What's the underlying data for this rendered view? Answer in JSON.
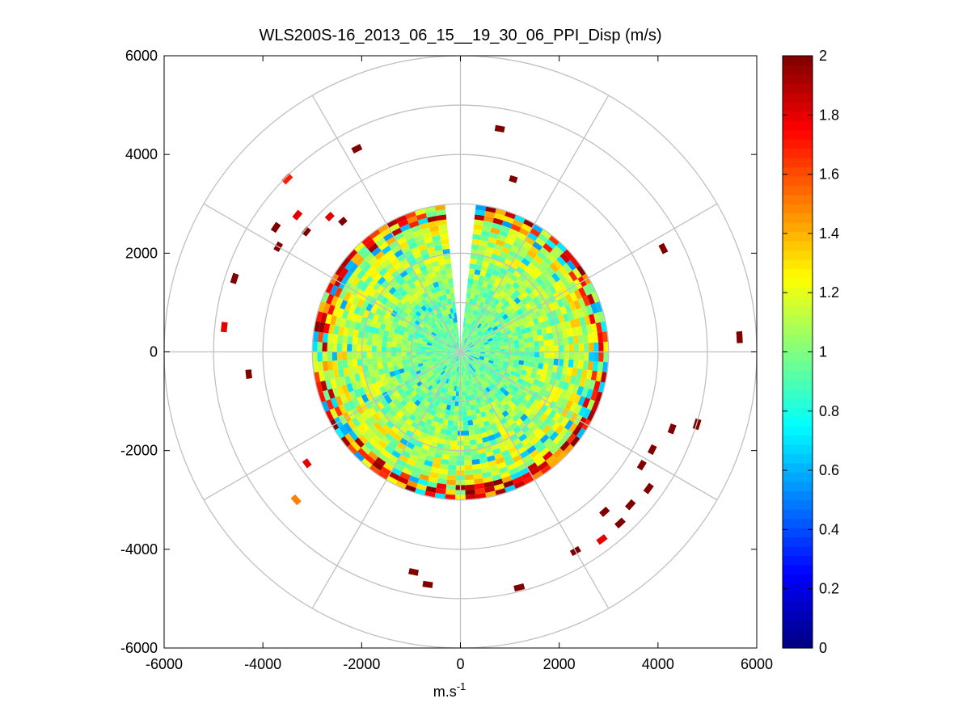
{
  "chart_data": {
    "type": "heatmap",
    "subtype": "polar-ppi",
    "title": "WLS200S-16_2013_06_15__19_30_06_PPI_Disp (m/s)",
    "xlabel_base": "m.s",
    "xlabel_sup": "-1",
    "ylabel": "",
    "xlim": [
      -6000,
      6000
    ],
    "ylim": [
      -6000,
      6000
    ],
    "xticks": [
      -6000,
      -4000,
      -2000,
      0,
      2000,
      4000,
      6000
    ],
    "yticks": [
      6000,
      4000,
      2000,
      0,
      -2000,
      -4000,
      -6000
    ],
    "xtick_labels": [
      "-6000",
      "-4000",
      "-2000",
      "0",
      "2000",
      "4000",
      "6000"
    ],
    "ytick_labels": [
      "6000",
      "4000",
      "2000",
      "0",
      "-2000",
      "-4000",
      "-6000"
    ],
    "colorbar": {
      "colormap": "jet",
      "range": [
        0,
        2
      ],
      "ticks": [
        0,
        0.2,
        0.4,
        0.6,
        0.8,
        1,
        1.2,
        1.4,
        1.6,
        1.8,
        2
      ],
      "tick_labels": [
        "0",
        "0.2",
        "0.4",
        "0.6",
        "0.8",
        "1",
        "1.2",
        "1.4",
        "1.6",
        "1.8",
        "2"
      ]
    },
    "polar_grid": {
      "ring_radii": [
        1000,
        2000,
        3000,
        4000,
        5000,
        6000
      ],
      "spoke_angles_deg": [
        0,
        30,
        60,
        90,
        120,
        150,
        180,
        210,
        240,
        270,
        300,
        330
      ],
      "color": "#c0c0c0"
    },
    "scan": {
      "range_max": 3000,
      "range_step": 100,
      "azimuth_step_deg": 4,
      "blind_sector_deg": [
        -3,
        3
      ],
      "center_value": 0.95,
      "edge_value": 1.25
    },
    "outliers": [
      {
        "r": 4530,
        "theta_deg": 80,
        "v": 2
      },
      {
        "r": 4560,
        "theta_deg": 117,
        "v": 2
      },
      {
        "r": 4900,
        "theta_deg": 135,
        "v": 1.7
      },
      {
        "r": 4250,
        "theta_deg": 140,
        "v": 1.8
      },
      {
        "r": 4450,
        "theta_deg": 146,
        "v": 2
      },
      {
        "r": 3900,
        "theta_deg": 142,
        "v": 2
      },
      {
        "r": 3750,
        "theta_deg": 134,
        "v": 1.8
      },
      {
        "r": 4200,
        "theta_deg": 150,
        "v": 2
      },
      {
        "r": 3500,
        "theta_deg": 132,
        "v": 2
      },
      {
        "r": 4750,
        "theta_deg": 162,
        "v": 2
      },
      {
        "r": 4750,
        "theta_deg": 174,
        "v": 1.8
      },
      {
        "r": 4250,
        "theta_deg": 186,
        "v": 2
      },
      {
        "r": 4420,
        "theta_deg": 222,
        "v": 1.5
      },
      {
        "r": 3780,
        "theta_deg": 216,
        "v": 1.8
      },
      {
        "r": 4500,
        "theta_deg": 258,
        "v": 2
      },
      {
        "r": 4700,
        "theta_deg": 262,
        "v": 2
      },
      {
        "r": 4860,
        "theta_deg": 284,
        "v": 2
      },
      {
        "r": 4600,
        "theta_deg": 300,
        "v": 2
      },
      {
        "r": 4700,
        "theta_deg": 307,
        "v": 1.8
      },
      {
        "r": 4680,
        "theta_deg": 313,
        "v": 2
      },
      {
        "r": 4300,
        "theta_deg": 312,
        "v": 2
      },
      {
        "r": 4570,
        "theta_deg": 318,
        "v": 2
      },
      {
        "r": 4650,
        "theta_deg": 324,
        "v": 2
      },
      {
        "r": 4270,
        "theta_deg": 328,
        "v": 2
      },
      {
        "r": 4500,
        "theta_deg": 340,
        "v": 2
      },
      {
        "r": 4950,
        "theta_deg": 343,
        "v": 2
      },
      {
        "r": 4300,
        "theta_deg": 333,
        "v": 2
      },
      {
        "r": 5600,
        "theta_deg": 3,
        "v": 2
      },
      {
        "r": 4550,
        "theta_deg": 27,
        "v": 2
      },
      {
        "r": 3600,
        "theta_deg": 73,
        "v": 2
      }
    ]
  }
}
